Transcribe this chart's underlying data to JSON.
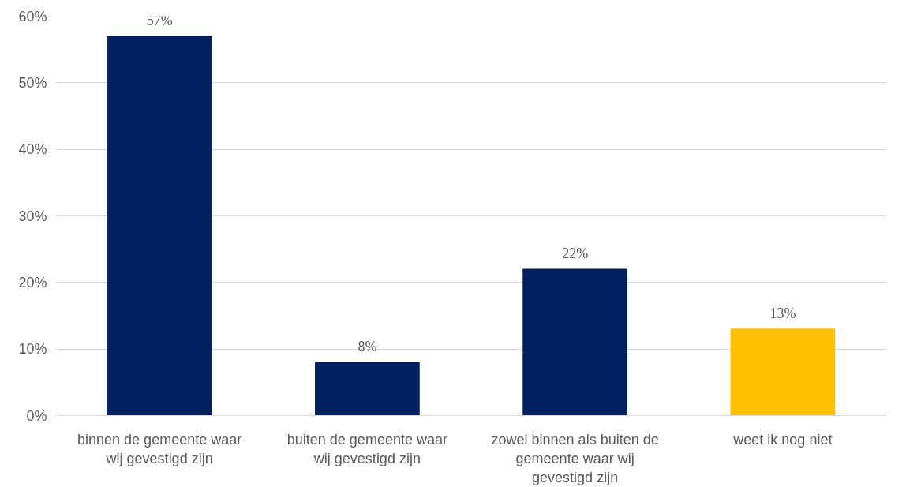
{
  "chart_data": {
    "type": "bar",
    "categories": [
      "binnen de gemeente waar wij gevestigd zijn",
      "buiten de gemeente waar wij gevestigd zijn",
      "zowel binnen als buiten de gemeente waar wij gevestigd zijn",
      "weet ik nog niet"
    ],
    "values": [
      57,
      8,
      22,
      13
    ],
    "colors": [
      "#002060",
      "#002060",
      "#002060",
      "#ffc000"
    ],
    "value_labels": [
      "57%",
      "8%",
      "22%",
      "13%"
    ],
    "ylim": [
      0,
      60
    ],
    "yticks": [
      {
        "value": 0,
        "label": "0%"
      },
      {
        "value": 10,
        "label": "10%"
      },
      {
        "value": 20,
        "label": "20%"
      },
      {
        "value": 30,
        "label": "30%"
      },
      {
        "value": 40,
        "label": "40%"
      },
      {
        "value": 50,
        "label": "50%"
      },
      {
        "value": 60,
        "label": "60%"
      }
    ],
    "grid": "y"
  }
}
